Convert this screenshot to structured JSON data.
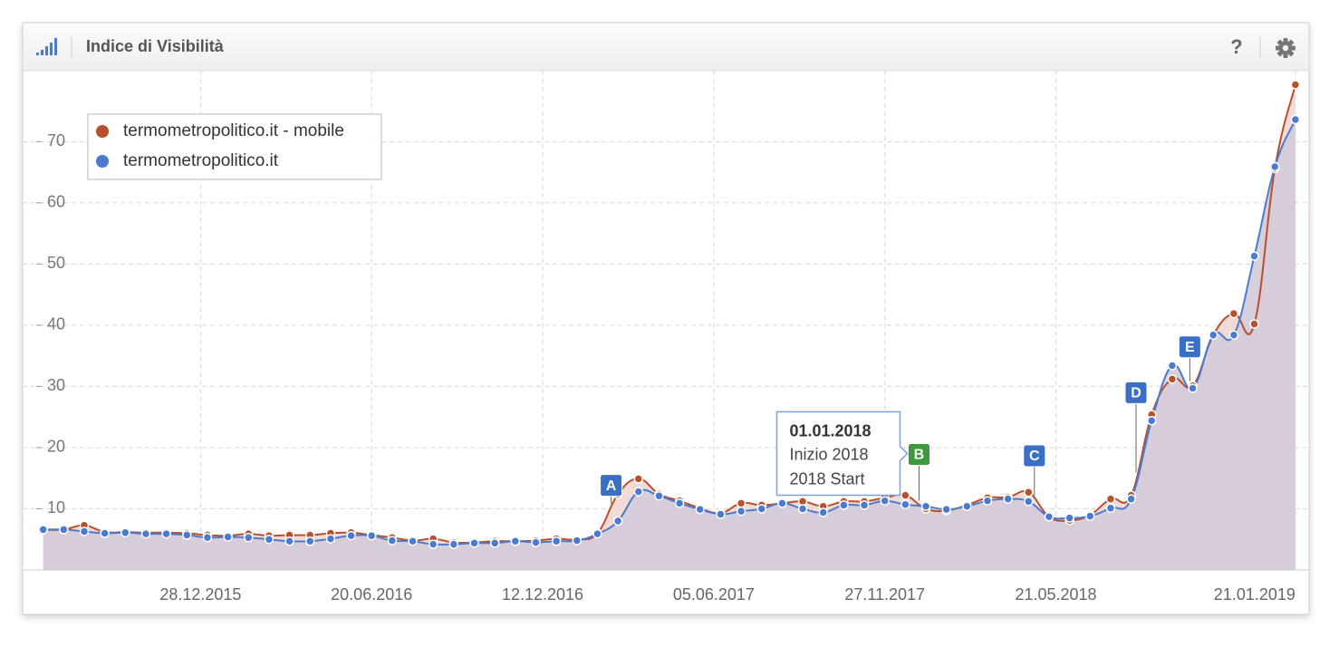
{
  "header": {
    "title": "Indice di Visibilità",
    "help": "?"
  },
  "chart_data": {
    "type": "area-line",
    "x": [
      "20.07.2015",
      "10.08.2015",
      "31.08.2015",
      "21.09.2015",
      "12.10.2015",
      "02.11.2015",
      "23.11.2015",
      "14.12.2015",
      "04.01.2016",
      "25.01.2016",
      "15.02.2016",
      "07.03.2016",
      "28.03.2016",
      "18.04.2016",
      "09.05.2016",
      "30.05.2016",
      "20.06.2016",
      "11.07.2016",
      "01.08.2016",
      "22.08.2016",
      "12.09.2016",
      "03.10.2016",
      "24.10.2016",
      "14.11.2016",
      "05.12.2016",
      "26.12.2016",
      "16.01.2017",
      "06.02.2017",
      "27.02.2017",
      "20.03.2017",
      "10.04.2017",
      "01.05.2017",
      "22.05.2017",
      "12.06.2017",
      "03.07.2017",
      "24.07.2017",
      "14.08.2017",
      "04.09.2017",
      "25.09.2017",
      "16.10.2017",
      "06.11.2017",
      "27.11.2017",
      "18.12.2017",
      "08.01.2018",
      "29.01.2018",
      "19.02.2018",
      "12.03.2018",
      "02.04.2018",
      "23.04.2018",
      "14.05.2018",
      "04.06.2018",
      "25.06.2018",
      "16.07.2018",
      "06.08.2018",
      "27.08.2018",
      "17.09.2018",
      "08.10.2018",
      "29.10.2018",
      "19.11.2018",
      "10.12.2018",
      "31.12.2018",
      "21.01.2019"
    ],
    "series": [
      {
        "name": "termometropolitico.it - mobile",
        "color": "#b9502c",
        "fill": "#efd9d4",
        "values": [
          6.6,
          6.6,
          7.3,
          6.2,
          6.2,
          6.1,
          6.1,
          6.0,
          5.7,
          5.6,
          5.9,
          5.6,
          5.7,
          5.7,
          6.0,
          6.1,
          5.7,
          5.3,
          4.8,
          5.1,
          4.5,
          4.5,
          4.7,
          4.7,
          4.8,
          5.1,
          5.0,
          6.0,
          12.4,
          14.9,
          12.4,
          11.3,
          10.1,
          9.3,
          10.9,
          10.6,
          10.9,
          11.2,
          10.4,
          11.2,
          11.2,
          11.8,
          12.2,
          10.0,
          9.7,
          10.6,
          11.8,
          11.9,
          12.7,
          8.7,
          8.1,
          9.0,
          11.6,
          12.2,
          25.4,
          31.2,
          30.1,
          38.4,
          41.9,
          40.2,
          65.6,
          79.3
        ]
      },
      {
        "name": "termometropolitico.it",
        "color": "#4a7bd0",
        "fill": "#d5ccda",
        "values": [
          6.6,
          6.6,
          6.3,
          6.0,
          6.1,
          5.9,
          5.9,
          5.7,
          5.3,
          5.4,
          5.3,
          5.0,
          4.7,
          4.7,
          5.1,
          5.6,
          5.6,
          4.8,
          4.7,
          4.2,
          4.2,
          4.4,
          4.4,
          4.7,
          4.5,
          4.7,
          4.8,
          5.9,
          8.0,
          12.8,
          12.1,
          10.9,
          9.9,
          9.1,
          9.6,
          10.0,
          10.9,
          10.0,
          9.4,
          10.6,
          10.6,
          11.3,
          10.7,
          10.4,
          9.9,
          10.4,
          11.3,
          11.6,
          11.2,
          8.7,
          8.5,
          8.8,
          10.1,
          11.6,
          24.4,
          33.4,
          29.7,
          38.4,
          38.4,
          51.3,
          65.9,
          73.6
        ]
      }
    ],
    "xlim": [
      "29.06.2015",
      "04.02.2019"
    ],
    "xticks": [
      "28.12.2015",
      "20.06.2016",
      "12.12.2016",
      "05.06.2017",
      "27.11.2017",
      "21.05.2018",
      "21.01.2019"
    ],
    "ylim": [
      0,
      81.6
    ],
    "yticks": [
      10,
      20,
      30,
      40,
      50,
      60,
      70
    ],
    "grid": true,
    "legend": "top-left",
    "annotations": [
      {
        "label": "A",
        "x": "20.02.2017",
        "color": "#3b6fc6"
      },
      {
        "label": "B",
        "x": "01.01.2018",
        "color": "#3c9a3c",
        "tooltip": [
          "Inizio 2018",
          "2018 Start"
        ]
      },
      {
        "label": "C",
        "x": "29.04.2018",
        "color": "#3b6fc6"
      },
      {
        "label": "D",
        "x": "11.08.2018",
        "color": "#3b6fc6"
      },
      {
        "label": "E",
        "x": "05.10.2018",
        "color": "#3b6fc6"
      }
    ]
  }
}
